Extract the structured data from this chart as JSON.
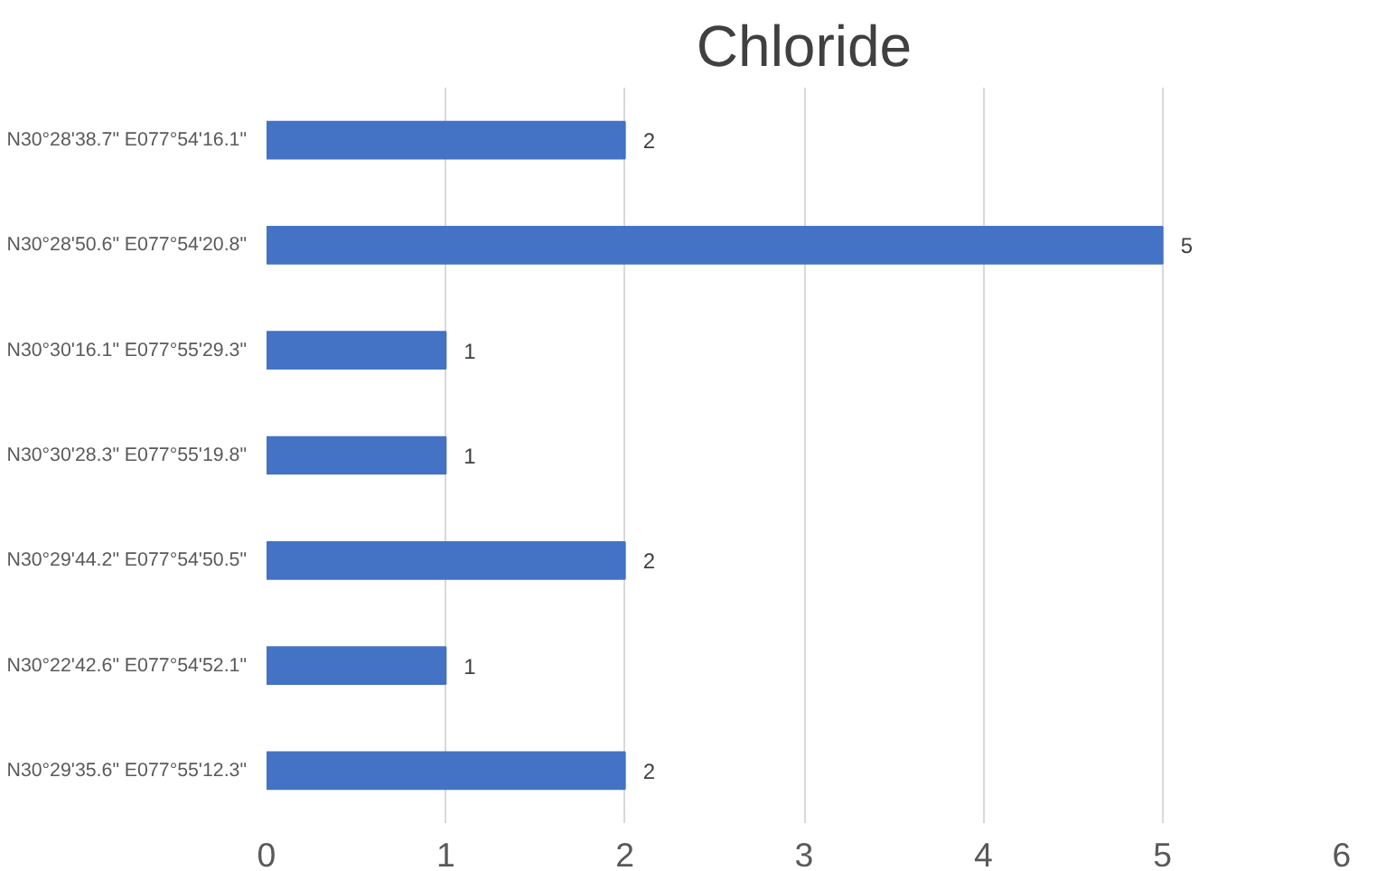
{
  "chart_data": {
    "type": "bar",
    "orientation": "horizontal",
    "title": "Chloride",
    "categories": [
      "N30°28'38.7\" E077°54'16.1\"",
      "N30°28'50.6\" E077°54'20.8\"",
      "N30°30'16.1\" E077°55'29.3\"",
      "N30°30'28.3\" E077°55'19.8\"",
      "N30°29'44.2\" E077°54'50.5\"",
      "N30°22'42.6\" E077°54'52.1\"",
      "N30°29'35.6\" E077°55'12.3\""
    ],
    "values": [
      2,
      5,
      1,
      1,
      2,
      1,
      2
    ],
    "color": "#4472c4",
    "xlim": [
      0,
      6
    ],
    "xticks": [
      0,
      1,
      2,
      3,
      4,
      5,
      6
    ],
    "grid": "x",
    "data_labels": true
  }
}
